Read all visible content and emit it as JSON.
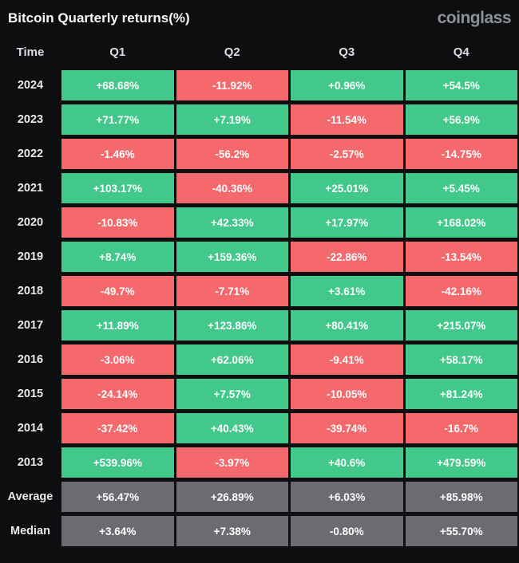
{
  "header": {
    "title": "Bitcoin Quarterly returns(%)",
    "brand": "coinglass"
  },
  "colors": {
    "positive": "#42c88b",
    "negative": "#f5696d",
    "neutral": "#6b6c70",
    "background": "#0d0e10"
  },
  "table": {
    "columns": [
      "Time",
      "Q1",
      "Q2",
      "Q3",
      "Q4"
    ],
    "rows": [
      {
        "label": "2024",
        "summary": false,
        "values": [
          "+68.68%",
          "-11.92%",
          "+0.96%",
          "+54.5%"
        ]
      },
      {
        "label": "2023",
        "summary": false,
        "values": [
          "+71.77%",
          "+7.19%",
          "-11.54%",
          "+56.9%"
        ]
      },
      {
        "label": "2022",
        "summary": false,
        "values": [
          "-1.46%",
          "-56.2%",
          "-2.57%",
          "-14.75%"
        ]
      },
      {
        "label": "2021",
        "summary": false,
        "values": [
          "+103.17%",
          "-40.36%",
          "+25.01%",
          "+5.45%"
        ]
      },
      {
        "label": "2020",
        "summary": false,
        "values": [
          "-10.83%",
          "+42.33%",
          "+17.97%",
          "+168.02%"
        ]
      },
      {
        "label": "2019",
        "summary": false,
        "values": [
          "+8.74%",
          "+159.36%",
          "-22.86%",
          "-13.54%"
        ]
      },
      {
        "label": "2018",
        "summary": false,
        "values": [
          "-49.7%",
          "-7.71%",
          "+3.61%",
          "-42.16%"
        ]
      },
      {
        "label": "2017",
        "summary": false,
        "values": [
          "+11.89%",
          "+123.86%",
          "+80.41%",
          "+215.07%"
        ]
      },
      {
        "label": "2016",
        "summary": false,
        "values": [
          "-3.06%",
          "+62.06%",
          "-9.41%",
          "+58.17%"
        ]
      },
      {
        "label": "2015",
        "summary": false,
        "values": [
          "-24.14%",
          "+7.57%",
          "-10.05%",
          "+81.24%"
        ]
      },
      {
        "label": "2014",
        "summary": false,
        "values": [
          "-37.42%",
          "+40.43%",
          "-39.74%",
          "-16.7%"
        ]
      },
      {
        "label": "2013",
        "summary": false,
        "values": [
          "+539.96%",
          "-3.97%",
          "+40.6%",
          "+479.59%"
        ]
      },
      {
        "label": "Average",
        "summary": true,
        "values": [
          "+56.47%",
          "+26.89%",
          "+6.03%",
          "+85.98%"
        ]
      },
      {
        "label": "Median",
        "summary": true,
        "values": [
          "+3.64%",
          "+7.38%",
          "-0.80%",
          "+55.70%"
        ]
      }
    ]
  },
  "chart_data": {
    "type": "table",
    "title": "Bitcoin Quarterly returns(%)",
    "units": "%",
    "columns": [
      "Time",
      "Q1",
      "Q2",
      "Q3",
      "Q4"
    ],
    "rows": [
      [
        "2024",
        68.68,
        -11.92,
        0.96,
        54.5
      ],
      [
        "2023",
        71.77,
        7.19,
        -11.54,
        56.9
      ],
      [
        "2022",
        -1.46,
        -56.2,
        -2.57,
        -14.75
      ],
      [
        "2021",
        103.17,
        -40.36,
        25.01,
        5.45
      ],
      [
        "2020",
        -10.83,
        42.33,
        17.97,
        168.02
      ],
      [
        "2019",
        8.74,
        159.36,
        -22.86,
        -13.54
      ],
      [
        "2018",
        -49.7,
        -7.71,
        3.61,
        -42.16
      ],
      [
        "2017",
        11.89,
        123.86,
        80.41,
        215.07
      ],
      [
        "2016",
        -3.06,
        62.06,
        -9.41,
        58.17
      ],
      [
        "2015",
        -24.14,
        7.57,
        -10.05,
        81.24
      ],
      [
        "2014",
        -37.42,
        40.43,
        -39.74,
        -16.7
      ],
      [
        "2013",
        539.96,
        -3.97,
        40.6,
        479.59
      ],
      [
        "Average",
        56.47,
        26.89,
        6.03,
        85.98
      ],
      [
        "Median",
        3.64,
        7.38,
        -0.8,
        55.7
      ]
    ],
    "color_rule": "positive values green, negative values red, summary rows gray"
  }
}
